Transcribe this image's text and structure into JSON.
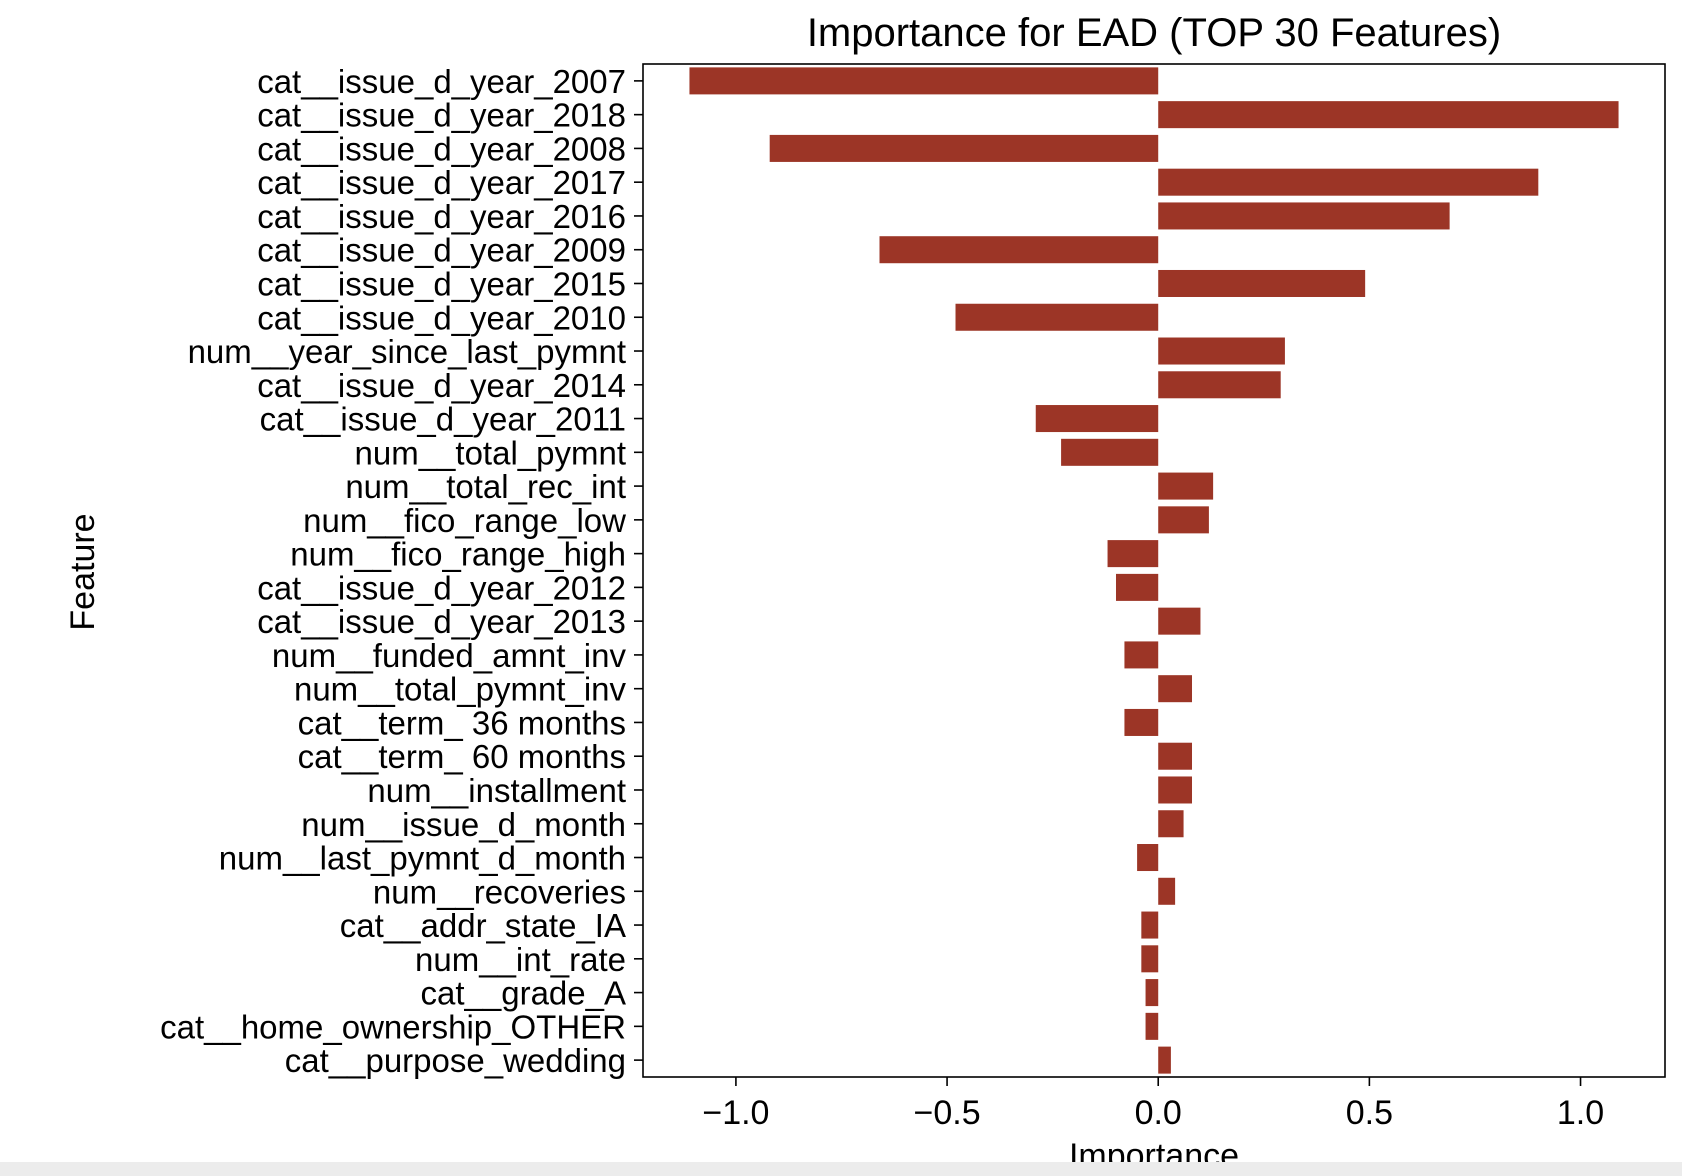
{
  "chart_data": {
    "type": "bar",
    "orientation": "horizontal",
    "title": "Importance for EAD (TOP 30 Features)",
    "xlabel": "Importance",
    "ylabel": "Feature",
    "xlim": [
      -1.22,
      1.2
    ],
    "xticks": [
      -1.0,
      -0.5,
      0.0,
      0.5,
      1.0
    ],
    "xtick_labels": [
      "−1.0",
      "−0.5",
      "0.0",
      "0.5",
      "1.0"
    ],
    "grid": false,
    "bar_color": "#9c3526",
    "categories": [
      "cat__issue_d_year_2007",
      "cat__issue_d_year_2018",
      "cat__issue_d_year_2008",
      "cat__issue_d_year_2017",
      "cat__issue_d_year_2016",
      "cat__issue_d_year_2009",
      "cat__issue_d_year_2015",
      "cat__issue_d_year_2010",
      "num__year_since_last_pymnt",
      "cat__issue_d_year_2014",
      "cat__issue_d_year_2011",
      "num__total_pymnt",
      "num__total_rec_int",
      "num__fico_range_low",
      "num__fico_range_high",
      "cat__issue_d_year_2012",
      "cat__issue_d_year_2013",
      "num__funded_amnt_inv",
      "num__total_pymnt_inv",
      "cat__term_ 36 months",
      "cat__term_ 60 months",
      "num__installment",
      "num__issue_d_month",
      "num__last_pymnt_d_month",
      "num__recoveries",
      "cat__addr_state_IA",
      "num__int_rate",
      "cat__grade_A",
      "cat__home_ownership_OTHER",
      "cat__purpose_wedding"
    ],
    "values": [
      -1.11,
      1.09,
      -0.92,
      0.9,
      0.69,
      -0.66,
      0.49,
      -0.48,
      0.3,
      0.29,
      -0.29,
      -0.23,
      0.13,
      0.12,
      -0.12,
      -0.1,
      0.1,
      -0.08,
      0.08,
      -0.08,
      0.08,
      0.08,
      0.06,
      -0.05,
      0.04,
      -0.04,
      -0.04,
      -0.03,
      -0.03,
      0.03
    ]
  }
}
